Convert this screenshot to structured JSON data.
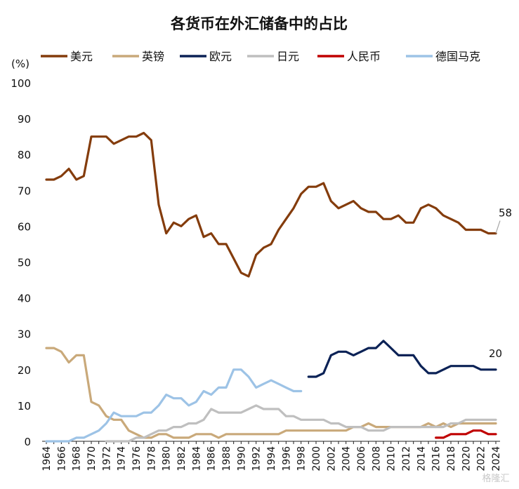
{
  "chart_data": {
    "type": "line",
    "title": "各货币在外汇储备中的占比",
    "ylabel": "(%)",
    "xlabel": "",
    "ylim": [
      0,
      100
    ],
    "yticks": [
      0,
      10,
      20,
      30,
      40,
      50,
      60,
      70,
      80,
      90,
      100
    ],
    "xlim": [
      1964,
      2024
    ],
    "xticks": [
      1964,
      1966,
      1968,
      1970,
      1972,
      1974,
      1976,
      1978,
      1980,
      1982,
      1984,
      1986,
      1988,
      1990,
      1992,
      1994,
      1996,
      1998,
      2000,
      2002,
      2004,
      2006,
      2008,
      2010,
      2012,
      2014,
      2016,
      2018,
      2020,
      2022,
      2024
    ],
    "grid": false,
    "legend_position": "top",
    "annotations": [
      {
        "series": "美元",
        "x": 2024,
        "y": 58,
        "text": "58"
      },
      {
        "series": "欧元",
        "x": 2024,
        "y": 20,
        "text": "20"
      }
    ],
    "watermark": "格隆汇",
    "series": [
      {
        "name": "美元",
        "color": "#843c0c",
        "x": [
          1964,
          1965,
          1966,
          1967,
          1968,
          1969,
          1970,
          1971,
          1972,
          1973,
          1974,
          1975,
          1976,
          1977,
          1978,
          1979,
          1980,
          1981,
          1982,
          1983,
          1984,
          1985,
          1986,
          1987,
          1988,
          1989,
          1990,
          1991,
          1992,
          1993,
          1994,
          1995,
          1996,
          1997,
          1998,
          1999,
          2000,
          2001,
          2002,
          2003,
          2004,
          2005,
          2006,
          2007,
          2008,
          2009,
          2010,
          2011,
          2012,
          2013,
          2014,
          2015,
          2016,
          2017,
          2018,
          2019,
          2020,
          2021,
          2022,
          2023,
          2024
        ],
        "values": [
          73,
          73,
          74,
          76,
          73,
          74,
          85,
          85,
          85,
          83,
          84,
          85,
          85,
          86,
          84,
          66,
          58,
          61,
          60,
          62,
          63,
          57,
          58,
          55,
          55,
          51,
          47,
          46,
          52,
          54,
          55,
          59,
          62,
          65,
          69,
          71,
          71,
          72,
          67,
          65,
          66,
          67,
          65,
          64,
          64,
          62,
          62,
          63,
          61,
          61,
          65,
          66,
          65,
          63,
          62,
          61,
          59,
          59,
          59,
          58,
          58
        ]
      },
      {
        "name": "英镑",
        "color": "#c9a97a",
        "x": [
          1964,
          1965,
          1966,
          1967,
          1968,
          1969,
          1970,
          1971,
          1972,
          1973,
          1974,
          1975,
          1976,
          1977,
          1978,
          1979,
          1980,
          1981,
          1982,
          1983,
          1984,
          1985,
          1986,
          1987,
          1988,
          1989,
          1990,
          1991,
          1992,
          1993,
          1994,
          1995,
          1996,
          1997,
          1998,
          1999,
          2000,
          2001,
          2002,
          2003,
          2004,
          2005,
          2006,
          2007,
          2008,
          2009,
          2010,
          2011,
          2012,
          2013,
          2014,
          2015,
          2016,
          2017,
          2018,
          2019,
          2020,
          2021,
          2022,
          2023,
          2024
        ],
        "values": [
          26,
          26,
          25,
          22,
          24,
          24,
          11,
          10,
          7,
          6,
          6,
          3,
          2,
          1,
          1,
          2,
          2,
          1,
          1,
          1,
          2,
          2,
          2,
          1,
          2,
          2,
          2,
          2,
          2,
          2,
          2,
          2,
          3,
          3,
          3,
          3,
          3,
          3,
          3,
          3,
          3,
          4,
          4,
          5,
          4,
          4,
          4,
          4,
          4,
          4,
          4,
          5,
          4,
          5,
          4,
          5,
          5,
          5,
          5,
          5,
          5
        ]
      },
      {
        "name": "欧元",
        "color": "#0b2256",
        "x": [
          1999,
          2000,
          2001,
          2002,
          2003,
          2004,
          2005,
          2006,
          2007,
          2008,
          2009,
          2010,
          2011,
          2012,
          2013,
          2014,
          2015,
          2016,
          2017,
          2018,
          2019,
          2020,
          2021,
          2022,
          2023,
          2024
        ],
        "values": [
          18,
          18,
          19,
          24,
          25,
          25,
          24,
          25,
          26,
          26,
          28,
          26,
          24,
          24,
          24,
          21,
          19,
          19,
          20,
          21,
          21,
          21,
          21,
          20,
          20,
          20
        ]
      },
      {
        "name": "日元",
        "color": "#bfbfbf",
        "x": [
          1972,
          1973,
          1974,
          1975,
          1976,
          1977,
          1978,
          1979,
          1980,
          1981,
          1982,
          1983,
          1984,
          1985,
          1986,
          1987,
          1988,
          1989,
          1990,
          1991,
          1992,
          1993,
          1994,
          1995,
          1996,
          1997,
          1998,
          1999,
          2000,
          2001,
          2002,
          2003,
          2004,
          2005,
          2006,
          2007,
          2008,
          2009,
          2010,
          2011,
          2012,
          2013,
          2014,
          2015,
          2016,
          2017,
          2018,
          2019,
          2020,
          2021,
          2022,
          2023,
          2024
        ],
        "values": [
          0,
          0,
          0,
          0,
          1,
          1,
          2,
          3,
          3,
          4,
          4,
          5,
          5,
          6,
          9,
          8,
          8,
          8,
          8,
          9,
          10,
          9,
          9,
          9,
          7,
          7,
          6,
          6,
          6,
          6,
          5,
          5,
          4,
          4,
          4,
          3,
          3,
          3,
          4,
          4,
          4,
          4,
          4,
          4,
          4,
          4,
          5,
          5,
          6,
          6,
          6,
          6,
          6
        ]
      },
      {
        "name": "人民币",
        "color": "#c00000",
        "x": [
          2016,
          2017,
          2018,
          2019,
          2020,
          2021,
          2022,
          2023,
          2024
        ],
        "values": [
          1,
          1,
          2,
          2,
          2,
          3,
          3,
          2,
          2
        ]
      },
      {
        "name": "德国马克",
        "color": "#9dc3e6",
        "x": [
          1964,
          1965,
          1966,
          1967,
          1968,
          1969,
          1970,
          1971,
          1972,
          1973,
          1974,
          1975,
          1976,
          1977,
          1978,
          1979,
          1980,
          1981,
          1982,
          1983,
          1984,
          1985,
          1986,
          1987,
          1988,
          1989,
          1990,
          1991,
          1992,
          1993,
          1994,
          1995,
          1996,
          1997,
          1998
        ],
        "values": [
          0,
          0,
          0,
          0,
          1,
          1,
          2,
          3,
          5,
          8,
          7,
          7,
          7,
          8,
          8,
          10,
          13,
          12,
          12,
          10,
          11,
          14,
          13,
          15,
          15,
          20,
          20,
          18,
          15,
          16,
          17,
          16,
          15,
          14,
          14
        ]
      }
    ]
  }
}
